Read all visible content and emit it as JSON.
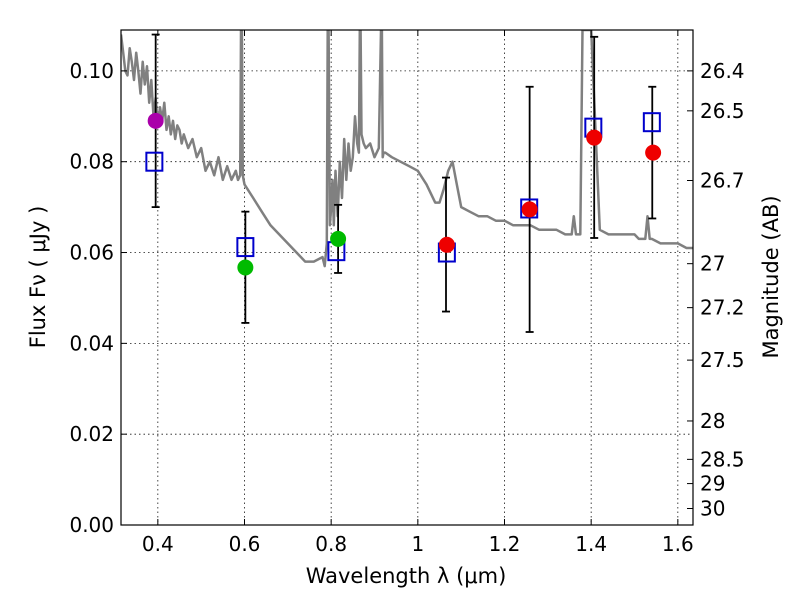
{
  "chart_data": {
    "type": "scatter",
    "xlabel": "Wavelength  λ (μm)",
    "ylabel": "Flux  Fν  ( μJy )",
    "y2label": "Magnitude (AB)",
    "xlim": [
      0.315,
      1.635
    ],
    "ylim": [
      0.0,
      0.109
    ],
    "grid": true,
    "x_ticks": [
      0.4,
      0.6,
      0.8,
      1.0,
      1.2,
      1.4,
      1.6
    ],
    "x_tick_labels": [
      "0.4",
      "0.6",
      "0.8",
      "1",
      "1.2",
      "1.4",
      "1.6"
    ],
    "y_ticks": [
      0.0,
      0.02,
      0.04,
      0.06,
      0.08,
      0.1
    ],
    "y_tick_labels": [
      "0.00",
      "0.02",
      "0.04",
      "0.06",
      "0.08",
      "0.10"
    ],
    "mag_ticks": [
      26.4,
      26.5,
      26.7,
      27.0,
      27.2,
      27.5,
      28.0,
      28.5,
      29.0,
      30.0
    ],
    "mag_tick_labels": [
      "26.4",
      "26.5",
      "26.7",
      "27",
      "27.2",
      "27.5",
      "28",
      "28.5",
      "29",
      "30"
    ],
    "model_spectrum": {
      "color": "#808080",
      "x": [
        0.315,
        0.32,
        0.325,
        0.33,
        0.335,
        0.34,
        0.345,
        0.35,
        0.355,
        0.36,
        0.365,
        0.37,
        0.375,
        0.38,
        0.385,
        0.39,
        0.395,
        0.4,
        0.405,
        0.41,
        0.415,
        0.42,
        0.425,
        0.43,
        0.435,
        0.44,
        0.445,
        0.45,
        0.455,
        0.46,
        0.47,
        0.48,
        0.49,
        0.5,
        0.51,
        0.52,
        0.53,
        0.54,
        0.55,
        0.56,
        0.57,
        0.58,
        0.585,
        0.59,
        0.592,
        0.594,
        0.596,
        0.598,
        0.6,
        0.62,
        0.64,
        0.66,
        0.68,
        0.7,
        0.72,
        0.74,
        0.76,
        0.78,
        0.785,
        0.79,
        0.792,
        0.794,
        0.797,
        0.8,
        0.803,
        0.806,
        0.81,
        0.815,
        0.82,
        0.825,
        0.83,
        0.835,
        0.84,
        0.845,
        0.85,
        0.855,
        0.86,
        0.864,
        0.866,
        0.868,
        0.87,
        0.875,
        0.88,
        0.89,
        0.9,
        0.91,
        0.915,
        0.917,
        0.919,
        0.921,
        0.925,
        0.94,
        0.96,
        0.98,
        1.0,
        1.02,
        1.04,
        1.05,
        1.06,
        1.07,
        1.08,
        1.09,
        1.1,
        1.12,
        1.14,
        1.16,
        1.18,
        1.2,
        1.22,
        1.24,
        1.26,
        1.28,
        1.3,
        1.32,
        1.34,
        1.355,
        1.36,
        1.365,
        1.375,
        1.38,
        1.39,
        1.4,
        1.42,
        1.44,
        1.46,
        1.48,
        1.5,
        1.51,
        1.52,
        1.525,
        1.53,
        1.535,
        1.54,
        1.56,
        1.58,
        1.6,
        1.62,
        1.635
      ],
      "y": [
        0.108,
        0.104,
        0.1,
        0.099,
        0.105,
        0.102,
        0.098,
        0.104,
        0.1,
        0.095,
        0.102,
        0.097,
        0.101,
        0.093,
        0.098,
        0.09,
        0.094,
        0.088,
        0.092,
        0.089,
        0.093,
        0.087,
        0.09,
        0.086,
        0.089,
        0.085,
        0.088,
        0.087,
        0.084,
        0.086,
        0.083,
        0.085,
        0.081,
        0.083,
        0.078,
        0.08,
        0.077,
        0.081,
        0.076,
        0.079,
        0.076,
        0.078,
        0.076,
        0.077,
        0.109,
        0.109,
        0.077,
        0.076,
        0.075,
        0.072,
        0.069,
        0.066,
        0.064,
        0.062,
        0.06,
        0.058,
        0.058,
        0.059,
        0.057,
        0.062,
        0.109,
        0.109,
        0.066,
        0.07,
        0.076,
        0.066,
        0.078,
        0.068,
        0.08,
        0.072,
        0.085,
        0.076,
        0.084,
        0.078,
        0.081,
        0.09,
        0.084,
        0.082,
        0.109,
        0.109,
        0.086,
        0.084,
        0.083,
        0.084,
        0.081,
        0.083,
        0.109,
        0.109,
        0.081,
        0.082,
        0.082,
        0.081,
        0.08,
        0.079,
        0.078,
        0.075,
        0.071,
        0.071,
        0.074,
        0.078,
        0.08,
        0.075,
        0.07,
        0.069,
        0.068,
        0.068,
        0.067,
        0.067,
        0.066,
        0.066,
        0.066,
        0.065,
        0.065,
        0.065,
        0.064,
        0.064,
        0.068,
        0.064,
        0.064,
        0.109,
        0.109,
        0.109,
        0.065,
        0.064,
        0.064,
        0.064,
        0.064,
        0.063,
        0.063,
        0.063,
        0.068,
        0.063,
        0.063,
        0.062,
        0.062,
        0.062,
        0.061,
        0.061
      ]
    },
    "error_bars": [
      {
        "x": 0.395,
        "lo": 0.07,
        "hi": 0.108
      },
      {
        "x": 0.602,
        "lo": 0.0445,
        "hi": 0.069
      },
      {
        "x": 0.816,
        "lo": 0.0555,
        "hi": 0.0705
      },
      {
        "x": 1.065,
        "lo": 0.047,
        "hi": 0.0765
      },
      {
        "x": 1.258,
        "lo": 0.0425,
        "hi": 0.0965
      },
      {
        "x": 1.407,
        "lo": 0.0632,
        "hi": 0.1075
      },
      {
        "x": 1.541,
        "lo": 0.0675,
        "hi": 0.0965
      }
    ],
    "model_band_flux": {
      "marker": "open-square",
      "color": "#0000cc",
      "x": [
        0.392,
        0.602,
        0.812,
        1.067,
        1.257,
        1.405,
        1.54
      ],
      "y": [
        0.08,
        0.0612,
        0.0603,
        0.06,
        0.0697,
        0.0875,
        0.0887
      ]
    },
    "observed_points": [
      {
        "x": 0.395,
        "y": 0.089,
        "color": "#aa00aa"
      },
      {
        "x": 0.602,
        "y": 0.0567,
        "color": "#00bb00"
      },
      {
        "x": 0.816,
        "y": 0.063,
        "color": "#00bb00"
      },
      {
        "x": 1.067,
        "y": 0.0617,
        "color": "#ee0000"
      },
      {
        "x": 1.258,
        "y": 0.0695,
        "color": "#ee0000"
      },
      {
        "x": 1.407,
        "y": 0.0853,
        "color": "#ee0000"
      },
      {
        "x": 1.543,
        "y": 0.082,
        "color": "#ee0000"
      }
    ]
  }
}
